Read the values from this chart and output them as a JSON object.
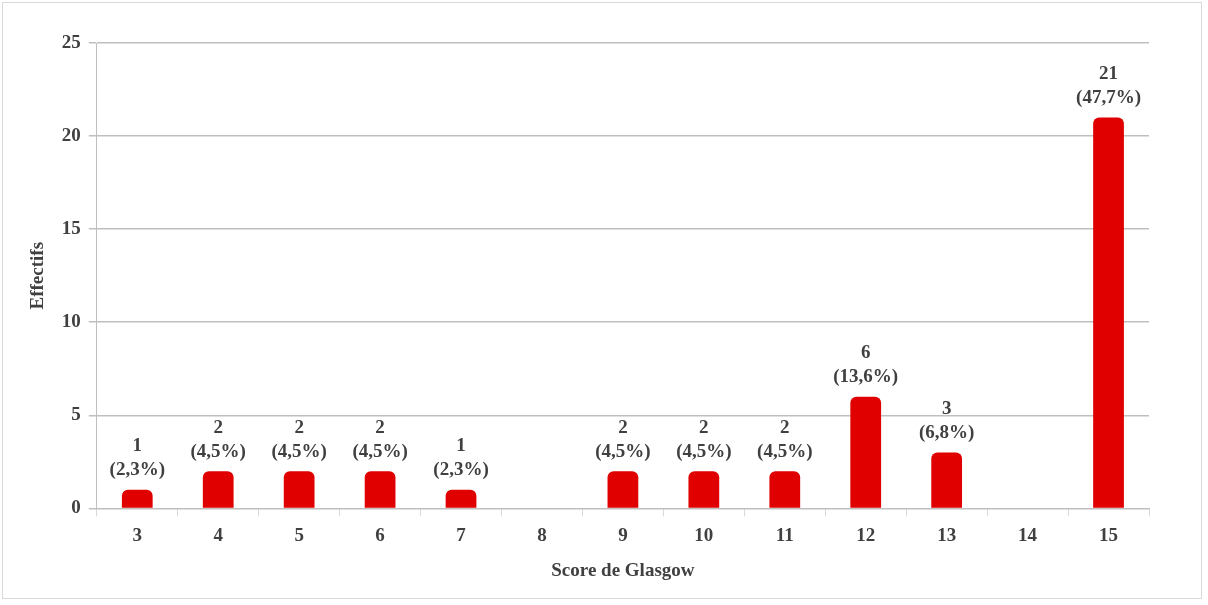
{
  "chart_data": {
    "type": "bar",
    "xlabel": "Score de Glasgow",
    "ylabel": "Effectifs",
    "categories": [
      "3",
      "4",
      "5",
      "6",
      "7",
      "8",
      "9",
      "10",
      "11",
      "12",
      "13",
      "14",
      "15"
    ],
    "values": [
      1,
      2,
      2,
      2,
      1,
      0,
      2,
      2,
      2,
      6,
      3,
      0,
      21
    ],
    "value_labels": [
      "1\n(2,3%)",
      "2\n(4,5%)",
      "2\n(4,5%)",
      "2\n(4,5%)",
      "1\n(2,3%)",
      null,
      "2\n(4,5%)",
      "2\n(4,5%)",
      "2\n(4,5%)",
      "6\n(13,6%)",
      "3\n(6,8%)",
      null,
      "21\n(47,7%)"
    ],
    "color": "#e00000",
    "ylim": [
      0,
      25
    ],
    "yticks": [
      0,
      5,
      10,
      15,
      20,
      25
    ],
    "grid": "y",
    "legend": false
  }
}
